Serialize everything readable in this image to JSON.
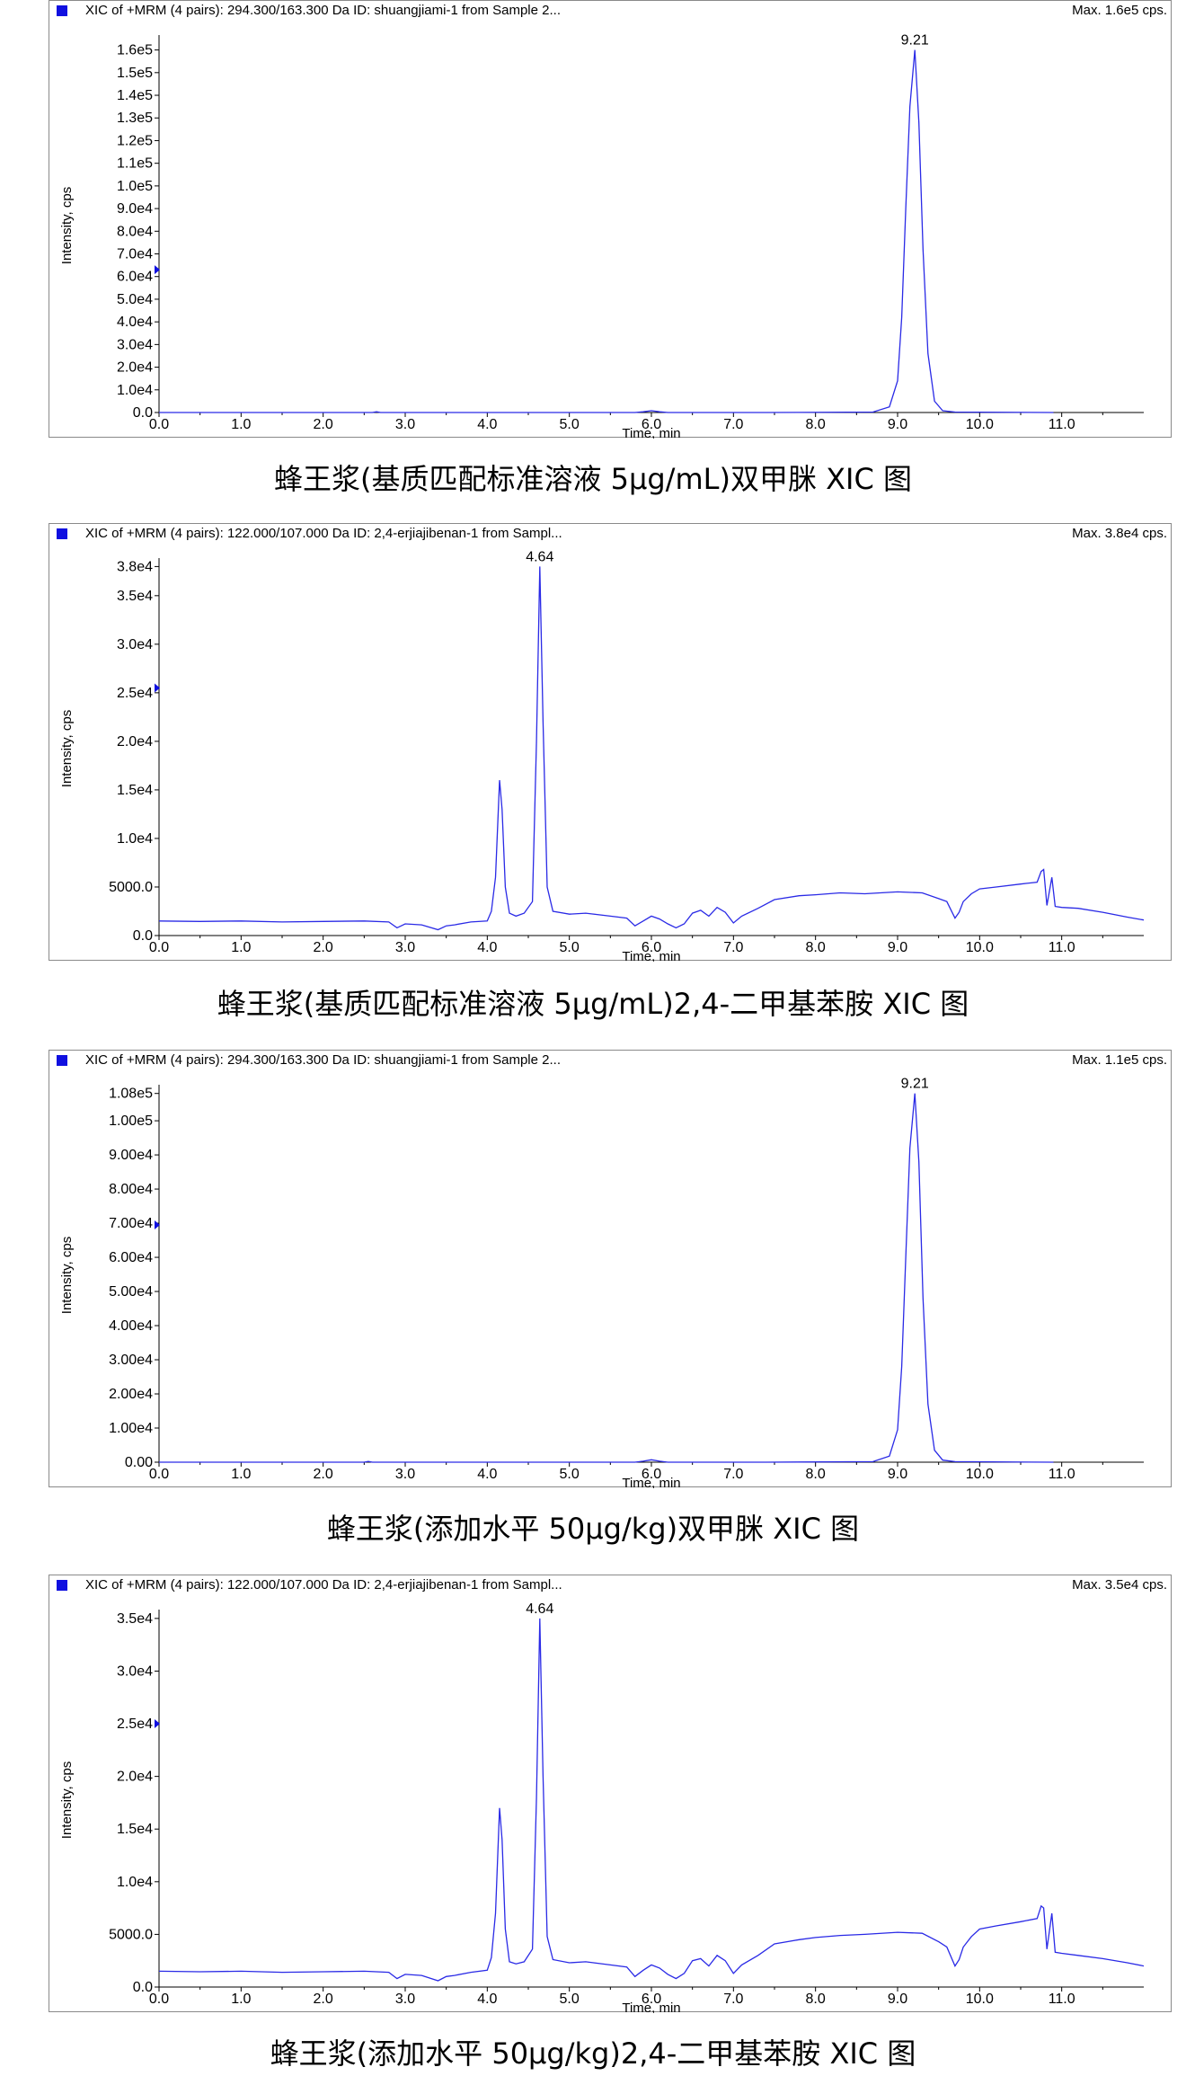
{
  "chart_data": [
    {
      "type": "line",
      "header": "XIC of +MRM (4 pairs): 294.300/163.300 Da ID: shuangjiami-1 from Sample 2...",
      "max_label": "Max. 1.6e5 cps.",
      "xlabel": "Time, min",
      "ylabel": "Intensity, cps",
      "xlim": [
        0.0,
        12.0
      ],
      "ylim": [
        0,
        165000
      ],
      "x_ticks": [
        "0.0",
        "1.0",
        "2.0",
        "3.0",
        "4.0",
        "5.0",
        "6.0",
        "7.0",
        "8.0",
        "9.0",
        "10.0",
        "11.0"
      ],
      "y_ticks": [
        "0.0",
        "1.0e4",
        "2.0e4",
        "3.0e4",
        "4.0e4",
        "5.0e4",
        "6.0e4",
        "7.0e4",
        "8.0e4",
        "9.0e4",
        "1.0e5",
        "1.1e5",
        "1.2e5",
        "1.3e5",
        "1.4e5",
        "1.5e5",
        "1.6e5"
      ],
      "y_tick_values": [
        0,
        10000,
        20000,
        30000,
        40000,
        50000,
        60000,
        70000,
        80000,
        90000,
        100000,
        110000,
        120000,
        130000,
        140000,
        150000,
        160000
      ],
      "marker_y": 63000,
      "peak_labels": [
        {
          "x": 9.21,
          "y": 160000,
          "text": "9.21"
        }
      ],
      "series": [
        {
          "color": "#2a2ae6",
          "x": [
            0.0,
            2.6,
            2.65,
            2.7,
            3.0,
            5.8,
            5.9,
            6.0,
            6.1,
            6.2,
            6.5,
            7.4,
            8.7,
            8.9,
            9.0,
            9.05,
            9.1,
            9.15,
            9.21,
            9.26,
            9.31,
            9.37,
            9.45,
            9.55,
            9.7,
            10.9
          ],
          "y": [
            0,
            0,
            300,
            0,
            0,
            0,
            300,
            800,
            300,
            0,
            0,
            0,
            200,
            2500,
            14000,
            42000,
            90000,
            135000,
            160000,
            128000,
            72000,
            26000,
            5000,
            800,
            200,
            0
          ]
        }
      ],
      "caption": "蜂王浆(基质匹配标准溶液 5μg/mL)双甲脒 XIC 图"
    },
    {
      "type": "line",
      "header": "XIC of +MRM (4 pairs): 122.000/107.000 Da ID: 2,4-erjiajibenan-1 from Sampl...",
      "max_label": "Max. 3.8e4 cps.",
      "xlabel": "Time, min",
      "ylabel": "Intensity, cps",
      "xlim": [
        0.0,
        12.0
      ],
      "ylim": [
        0,
        38500
      ],
      "x_ticks": [
        "0.0",
        "1.0",
        "2.0",
        "3.0",
        "4.0",
        "5.0",
        "6.0",
        "7.0",
        "8.0",
        "9.0",
        "10.0",
        "11.0"
      ],
      "y_ticks": [
        "0.0",
        "5000.0",
        "1.0e4",
        "1.5e4",
        "2.0e4",
        "2.5e4",
        "3.0e4",
        "3.5e4",
        "3.8e4"
      ],
      "y_tick_values": [
        0,
        5000,
        10000,
        15000,
        20000,
        25000,
        30000,
        35000,
        38000
      ],
      "marker_y": 25500,
      "peak_labels": [
        {
          "x": 4.64,
          "y": 38000,
          "text": "4.64"
        }
      ],
      "series": [
        {
          "color": "#2a2ae6",
          "x": [
            0.0,
            0.5,
            1.0,
            1.5,
            2.0,
            2.5,
            2.8,
            2.9,
            3.0,
            3.2,
            3.4,
            3.5,
            3.6,
            3.8,
            4.0,
            4.05,
            4.1,
            4.15,
            4.18,
            4.22,
            4.27,
            4.35,
            4.45,
            4.55,
            4.6,
            4.64,
            4.68,
            4.73,
            4.8,
            5.0,
            5.2,
            5.5,
            5.7,
            5.8,
            5.9,
            6.0,
            6.1,
            6.2,
            6.3,
            6.4,
            6.5,
            6.6,
            6.7,
            6.8,
            6.9,
            7.0,
            7.1,
            7.3,
            7.5,
            7.8,
            8.0,
            8.3,
            8.6,
            9.0,
            9.3,
            9.5,
            9.6,
            9.7,
            9.75,
            9.8,
            9.9,
            10.0,
            10.2,
            10.5,
            10.7,
            10.75,
            10.78,
            10.82,
            10.88,
            10.92,
            11.0,
            11.2,
            11.5,
            11.8,
            12.0
          ],
          "y": [
            1500,
            1450,
            1500,
            1400,
            1450,
            1500,
            1400,
            800,
            1200,
            1100,
            600,
            1000,
            1100,
            1400,
            1500,
            2500,
            6000,
            16000,
            13000,
            5000,
            2300,
            2000,
            2300,
            3500,
            20000,
            38000,
            22000,
            5000,
            2500,
            2200,
            2300,
            2000,
            1800,
            1000,
            1500,
            2000,
            1700,
            1200,
            800,
            1200,
            2300,
            2600,
            2000,
            2900,
            2400,
            1300,
            2000,
            2800,
            3700,
            4100,
            4200,
            4400,
            4300,
            4500,
            4400,
            3800,
            3500,
            1800,
            2400,
            3500,
            4300,
            4800,
            5000,
            5300,
            5500,
            6600,
            6800,
            3100,
            6000,
            3000,
            2900,
            2800,
            2400,
            1900,
            1600
          ]
        }
      ],
      "caption": "蜂王浆(基质匹配标准溶液 5μg/mL)2,4-二甲基苯胺 XIC 图"
    },
    {
      "type": "line",
      "header": "XIC of +MRM (4 pairs): 294.300/163.300 Da ID: shuangjiami-1 from Sample 2...",
      "max_label": "Max. 1.1e5 cps.",
      "xlabel": "Time, min",
      "ylabel": "Intensity, cps",
      "xlim": [
        0.0,
        12.0
      ],
      "ylim": [
        0,
        109500
      ],
      "x_ticks": [
        "0.0",
        "1.0",
        "2.0",
        "3.0",
        "4.0",
        "5.0",
        "6.0",
        "7.0",
        "8.0",
        "9.0",
        "10.0",
        "11.0"
      ],
      "y_ticks": [
        "0.00",
        "1.00e4",
        "2.00e4",
        "3.00e4",
        "4.00e4",
        "5.00e4",
        "6.00e4",
        "7.00e4",
        "8.00e4",
        "9.00e4",
        "1.00e5",
        "1.08e5"
      ],
      "y_tick_values": [
        0,
        10000,
        20000,
        30000,
        40000,
        50000,
        60000,
        70000,
        80000,
        90000,
        100000,
        108000
      ],
      "marker_y": 69500,
      "peak_labels": [
        {
          "x": 9.21,
          "y": 108000,
          "text": "9.21"
        }
      ],
      "series": [
        {
          "color": "#2a2ae6",
          "x": [
            0.0,
            2.5,
            2.55,
            2.6,
            3.0,
            5.8,
            5.9,
            6.0,
            6.1,
            6.2,
            6.5,
            7.4,
            8.7,
            8.9,
            9.0,
            9.05,
            9.1,
            9.15,
            9.21,
            9.26,
            9.31,
            9.37,
            9.45,
            9.55,
            9.7,
            10.9
          ],
          "y": [
            0,
            0,
            250,
            0,
            0,
            0,
            300,
            700,
            300,
            0,
            0,
            0,
            150,
            1800,
            9500,
            28000,
            60000,
            92000,
            108000,
            88000,
            48000,
            17000,
            3500,
            600,
            150,
            0
          ]
        }
      ],
      "caption": "蜂王浆(添加水平 50μg/kg)双甲脒 XIC 图"
    },
    {
      "type": "line",
      "header": "XIC of +MRM (4 pairs): 122.000/107.000 Da ID: 2,4-erjiajibenan-1 from Sampl...",
      "max_label": "Max. 3.5e4 cps.",
      "xlabel": "Time, min",
      "ylabel": "Intensity, cps",
      "xlim": [
        0.0,
        12.0
      ],
      "ylim": [
        0,
        35500
      ],
      "x_ticks": [
        "0.0",
        "1.0",
        "2.0",
        "3.0",
        "4.0",
        "5.0",
        "6.0",
        "7.0",
        "8.0",
        "9.0",
        "10.0",
        "11.0"
      ],
      "y_ticks": [
        "0.0",
        "5000.0",
        "1.0e4",
        "1.5e4",
        "2.0e4",
        "2.5e4",
        "3.0e4",
        "3.5e4"
      ],
      "y_tick_values": [
        0,
        5000,
        10000,
        15000,
        20000,
        25000,
        30000,
        35000
      ],
      "marker_y": 25000,
      "peak_labels": [
        {
          "x": 4.64,
          "y": 35000,
          "text": "4.64"
        }
      ],
      "series": [
        {
          "color": "#2a2ae6",
          "x": [
            0.0,
            0.5,
            1.0,
            1.5,
            2.0,
            2.5,
            2.8,
            2.9,
            3.0,
            3.2,
            3.4,
            3.5,
            3.6,
            3.8,
            4.0,
            4.05,
            4.1,
            4.15,
            4.18,
            4.22,
            4.27,
            4.35,
            4.45,
            4.55,
            4.6,
            4.64,
            4.68,
            4.73,
            4.8,
            5.0,
            5.2,
            5.5,
            5.7,
            5.8,
            5.9,
            6.0,
            6.1,
            6.2,
            6.3,
            6.4,
            6.5,
            6.6,
            6.7,
            6.8,
            6.9,
            7.0,
            7.1,
            7.3,
            7.5,
            7.8,
            8.0,
            8.3,
            8.6,
            9.0,
            9.3,
            9.5,
            9.6,
            9.7,
            9.75,
            9.8,
            9.9,
            10.0,
            10.2,
            10.5,
            10.7,
            10.75,
            10.78,
            10.82,
            10.88,
            10.92,
            11.0,
            11.2,
            11.5,
            11.8,
            12.0
          ],
          "y": [
            1500,
            1450,
            1500,
            1400,
            1450,
            1500,
            1400,
            800,
            1200,
            1100,
            600,
            1000,
            1100,
            1400,
            1600,
            2800,
            7000,
            17000,
            14000,
            5500,
            2400,
            2200,
            2400,
            3600,
            18000,
            35000,
            20000,
            4800,
            2600,
            2300,
            2400,
            2100,
            1900,
            1000,
            1600,
            2100,
            1800,
            1200,
            800,
            1300,
            2500,
            2700,
            2000,
            3000,
            2500,
            1300,
            2100,
            3000,
            4100,
            4500,
            4700,
            4900,
            5000,
            5200,
            5100,
            4300,
            3800,
            2000,
            2600,
            3800,
            4800,
            5500,
            5800,
            6200,
            6500,
            7700,
            7500,
            3600,
            7000,
            3300,
            3200,
            3000,
            2700,
            2300,
            2000
          ]
        }
      ],
      "caption": "蜂王浆(添加水平 50μg/kg)2,4-二甲基苯胺 XIC 图"
    }
  ]
}
